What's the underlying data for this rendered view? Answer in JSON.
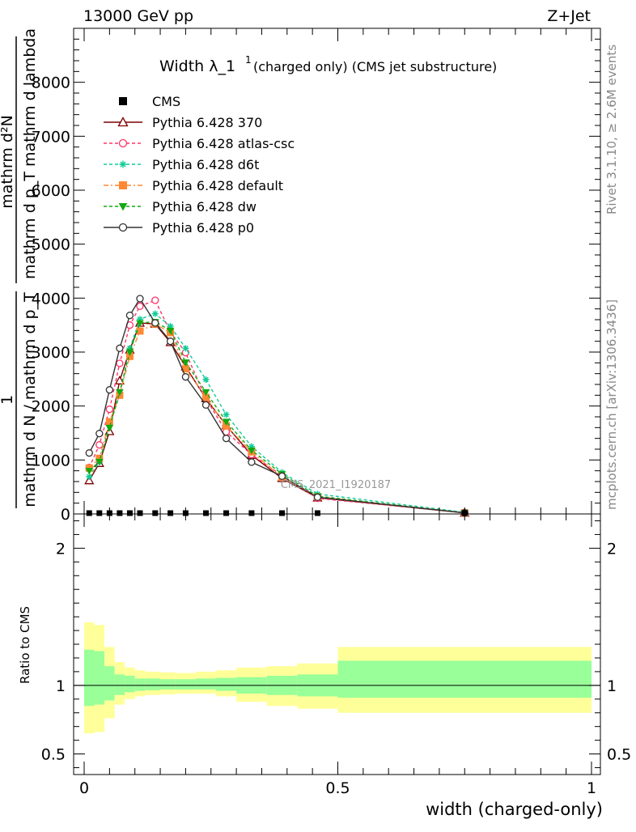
{
  "header": {
    "energy": "13000 GeV pp",
    "process": "Z+Jet",
    "rivet": "Rivet 3.1.10, ≥ 2.6M events",
    "mcplots": "mcplots.cern.ch [arXiv:1306.3436]"
  },
  "chart_data": {
    "type": "line",
    "title_main": "Width λ_1",
    "title_sup": "1",
    "title_sub": "(charged only) (CMS jet substructure)",
    "watermark": "CMS_2021_I1920187",
    "ylabel_num": "mathrm d²N",
    "ylabel_den": "mathrm d p_T mathrm d lambda",
    "ylabel_frac_num": "1",
    "ylabel_frac_den": "mathrm d N / mathrm d p_T",
    "ratio_ylabel": "Ratio to CMS",
    "xlabel": "width (charged-only)",
    "xlim": [
      0,
      1
    ],
    "ylim": [
      0,
      9000
    ],
    "ratio_ylim": [
      0.35,
      2.25
    ],
    "main_yticks": [
      "0",
      "1000",
      "2000",
      "3000",
      "4000",
      "5000",
      "6000",
      "7000",
      "8000"
    ],
    "ratio_yticks": [
      "0.5",
      "1",
      "2"
    ],
    "xticks": [
      "0",
      "0.5",
      "1"
    ],
    "x": [
      0.01,
      0.03,
      0.05,
      0.07,
      0.09,
      0.11,
      0.14,
      0.17,
      0.2,
      0.24,
      0.28,
      0.33,
      0.39,
      0.46,
      0.75
    ],
    "cms": [
      0,
      0,
      0,
      0,
      0,
      0,
      0,
      0,
      0,
      0,
      0,
      0,
      0,
      0,
      0
    ],
    "series": [
      {
        "name": "CMS",
        "color": "#000000",
        "marker": "square",
        "dash": ""
      },
      {
        "name": "Pythia 6.428 370",
        "color": "#7f0000",
        "marker": "triangle",
        "dash": "",
        "values": [
          620,
          940,
          1530,
          2470,
          3040,
          3540,
          3520,
          3180,
          2730,
          2140,
          1640,
          1090,
          660,
          300,
          20
        ]
      },
      {
        "name": "Pythia 6.428 atlas-csc",
        "color": "#ff3366",
        "marker": "circle",
        "dash": "4,3",
        "values": [
          860,
          1280,
          1940,
          2790,
          3500,
          3850,
          3960,
          3370,
          2990,
          2140,
          1520,
          1100,
          710,
          290,
          20
        ]
      },
      {
        "name": "Pythia 6.428 d6t",
        "color": "#11cc99",
        "marker": "star",
        "dash": "4,3",
        "values": [
          690,
          960,
          1630,
          2210,
          3070,
          3610,
          3710,
          3480,
          3070,
          2490,
          1840,
          1250,
          770,
          370,
          30
        ]
      },
      {
        "name": "Pythia 6.428 default",
        "color": "#ff8833",
        "marker": "square",
        "dash": "6,3,2,3",
        "values": [
          850,
          1030,
          1710,
          2200,
          2920,
          3390,
          3520,
          3360,
          2690,
          2160,
          1630,
          1150,
          680,
          320,
          20
        ]
      },
      {
        "name": "Pythia 6.428 dw",
        "color": "#11aa11",
        "marker": "triangle-down",
        "dash": "4,3",
        "values": [
          800,
          970,
          1600,
          2260,
          3000,
          3540,
          3560,
          3400,
          2810,
          2260,
          1710,
          1180,
          740,
          330,
          20
        ]
      },
      {
        "name": "Pythia 6.428 p0",
        "color": "#333333",
        "marker": "circle",
        "dash": "",
        "values": [
          1130,
          1490,
          2300,
          3070,
          3680,
          3990,
          3540,
          3200,
          2540,
          2020,
          1400,
          960,
          700,
          310,
          20
        ]
      }
    ],
    "band_edges": [
      0.0,
      0.02,
      0.04,
      0.06,
      0.08,
      0.1,
      0.12,
      0.15,
      0.18,
      0.22,
      0.26,
      0.3,
      0.36,
      0.42,
      0.5,
      1.0
    ],
    "band_yellow": [
      [
        0.65,
        1.46
      ],
      [
        0.66,
        1.44
      ],
      [
        0.76,
        1.28
      ],
      [
        0.86,
        1.17
      ],
      [
        0.9,
        1.13
      ],
      [
        0.92,
        1.11
      ],
      [
        0.93,
        1.1
      ],
      [
        0.935,
        1.095
      ],
      [
        0.94,
        1.09
      ],
      [
        0.94,
        1.1
      ],
      [
        0.92,
        1.11
      ],
      [
        0.88,
        1.13
      ],
      [
        0.85,
        1.14
      ],
      [
        0.83,
        1.16
      ],
      [
        0.8,
        1.28
      ]
    ],
    "band_green": [
      [
        0.85,
        1.26
      ],
      [
        0.86,
        1.25
      ],
      [
        0.89,
        1.14
      ],
      [
        0.93,
        1.08
      ],
      [
        0.95,
        1.07
      ],
      [
        0.96,
        1.05
      ],
      [
        0.965,
        1.05
      ],
      [
        0.97,
        1.045
      ],
      [
        0.97,
        1.045
      ],
      [
        0.97,
        1.05
      ],
      [
        0.96,
        1.055
      ],
      [
        0.94,
        1.06
      ],
      [
        0.93,
        1.07
      ],
      [
        0.92,
        1.08
      ],
      [
        0.91,
        1.18
      ]
    ]
  }
}
